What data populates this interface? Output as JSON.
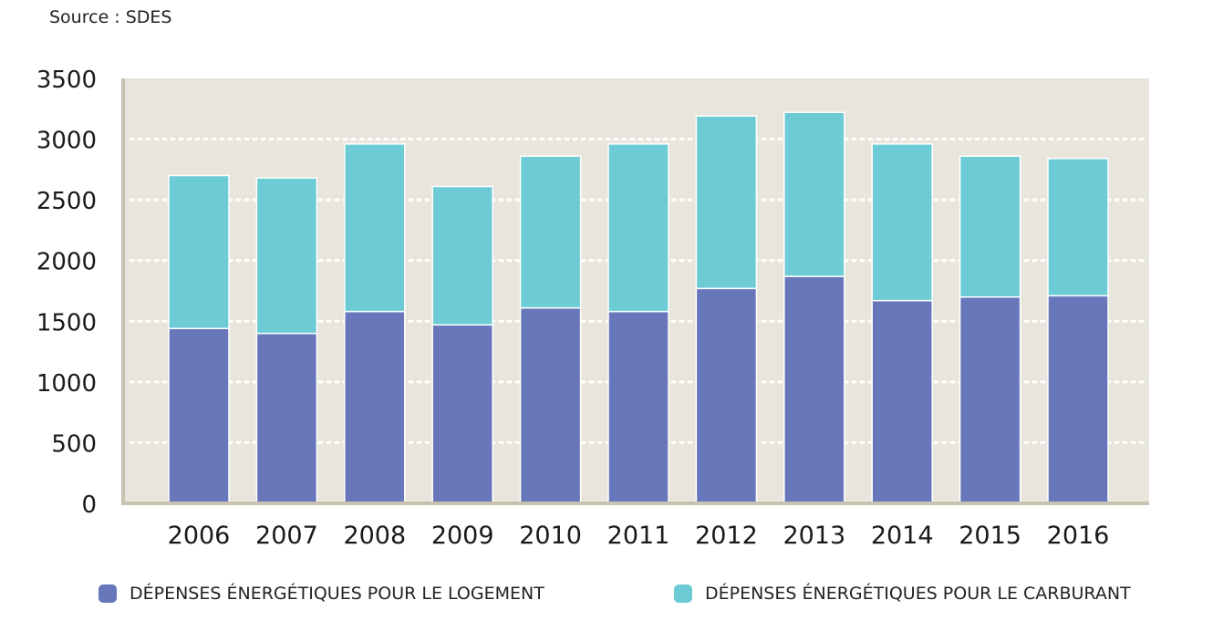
{
  "source": "Source : SDES",
  "chart_data": {
    "type": "bar",
    "stacked": true,
    "categories": [
      "2006",
      "2007",
      "2008",
      "2009",
      "2010",
      "2011",
      "2012",
      "2013",
      "2014",
      "2015",
      "2016"
    ],
    "series": [
      {
        "name": "DÉPENSES ÉNERGÉTIQUES POUR LE LOGEMENT",
        "color": "#6777ba",
        "values": [
          1440,
          1400,
          1580,
          1470,
          1610,
          1580,
          1770,
          1870,
          1670,
          1700,
          1710
        ]
      },
      {
        "name": "DÉPENSES ÉNERGÉTIQUES POUR LE CARBURANT",
        "color": "#6ccbd4",
        "values": [
          1260,
          1280,
          1380,
          1140,
          1250,
          1380,
          1420,
          1350,
          1290,
          1160,
          1130
        ]
      }
    ],
    "ylim": [
      0,
      3500
    ],
    "yticks": [
      "0",
      "500",
      "1000",
      "1500",
      "2000",
      "2500",
      "3000",
      "3500"
    ],
    "grid": true,
    "plot_background": "#e8e6dc",
    "legend_position": "bottom"
  }
}
